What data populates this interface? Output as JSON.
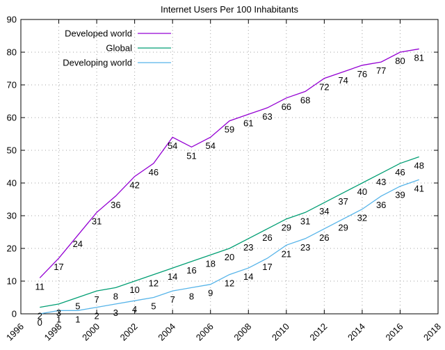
{
  "chart_data": {
    "type": "line",
    "title": "Internet Users Per 100 Inhabitants",
    "xlabel": "",
    "ylabel": "",
    "xlim": [
      1996,
      2018
    ],
    "ylim": [
      0,
      90
    ],
    "xticks": [
      1996,
      1998,
      2000,
      2002,
      2004,
      2006,
      2008,
      2010,
      2012,
      2014,
      2016,
      2018
    ],
    "yticks": [
      0,
      10,
      20,
      30,
      40,
      50,
      60,
      70,
      80,
      90
    ],
    "grid": true,
    "legend_position": "top-left",
    "x": [
      1997,
      1998,
      1999,
      2000,
      2001,
      2002,
      2003,
      2004,
      2005,
      2006,
      2007,
      2008,
      2009,
      2010,
      2011,
      2012,
      2013,
      2014,
      2015,
      2016,
      2017
    ],
    "series": [
      {
        "name": "Developed world",
        "color": "#9400d3",
        "values": [
          11,
          17,
          24,
          31,
          36,
          42,
          46,
          54,
          51,
          54,
          59,
          61,
          63,
          66,
          68,
          72,
          74,
          76,
          77,
          80,
          81
        ]
      },
      {
        "name": "Global",
        "color": "#009e73",
        "values": [
          2,
          3,
          5,
          7,
          8,
          10,
          12,
          14,
          16,
          18,
          20,
          23,
          26,
          29,
          31,
          34,
          37,
          40,
          43,
          46,
          48
        ]
      },
      {
        "name": "Developing world",
        "color": "#56b4e9",
        "values": [
          0,
          1,
          1,
          2,
          3,
          4,
          5,
          7,
          8,
          9,
          12,
          14,
          17,
          21,
          23,
          26,
          29,
          32,
          36,
          39,
          41
        ]
      }
    ]
  }
}
